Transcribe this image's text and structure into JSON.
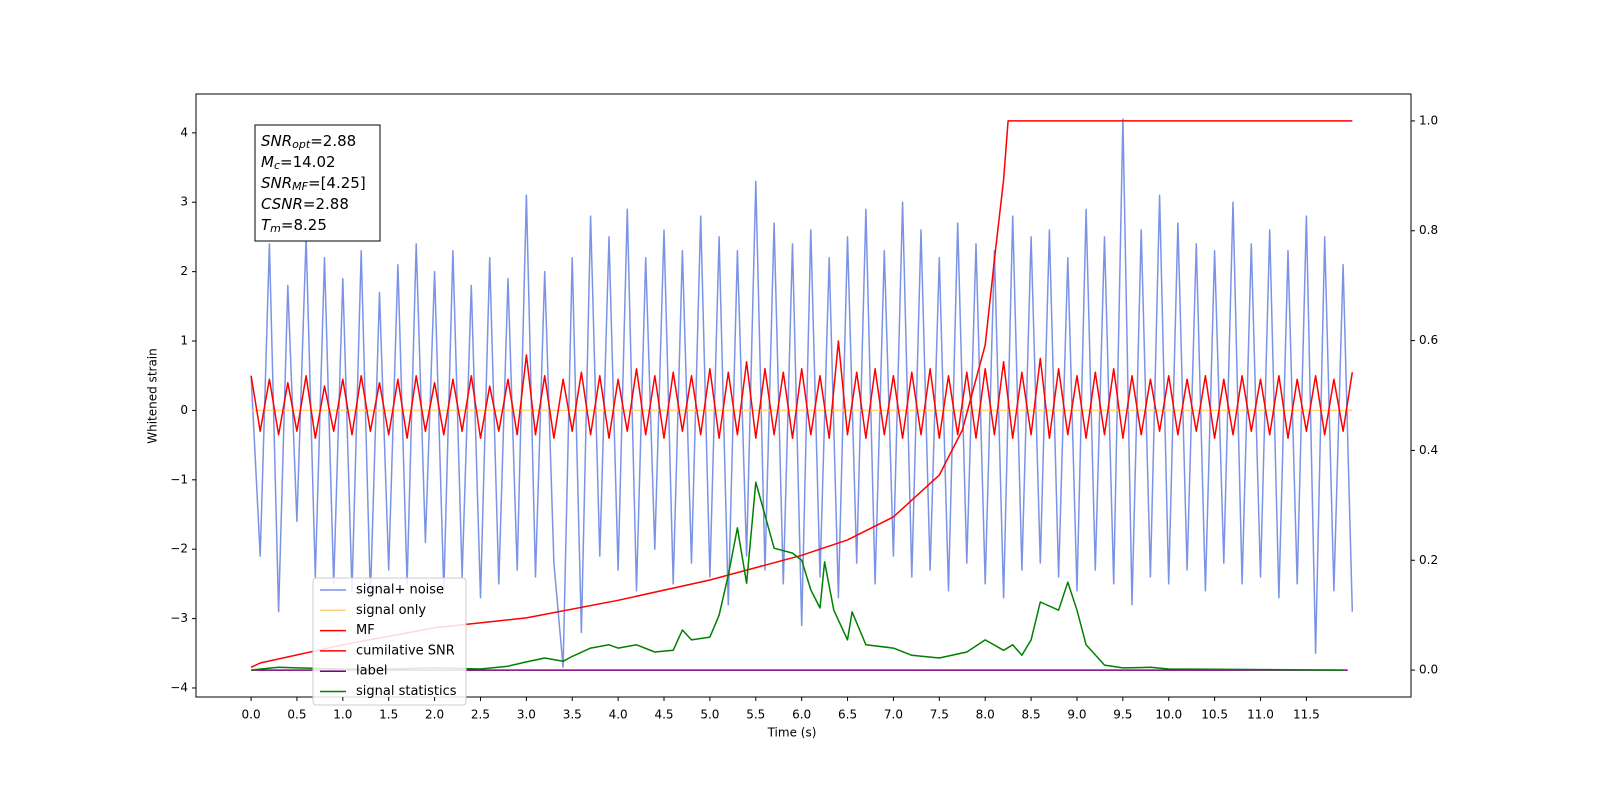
{
  "chart_data": {
    "type": "line",
    "xlabel": "Time (s)",
    "ylabel": "Whitened strain",
    "xlim": [
      -0.6,
      12.64
    ],
    "ylim": [
      -4.13,
      4.56
    ],
    "y2lim": [
      -0.049,
      1.049
    ],
    "xticks": [
      {
        "value": 0,
        "label": "0.0"
      },
      0.5,
      {
        "value": 1,
        "label": "1.0"
      },
      1.5,
      {
        "value": 2,
        "label": "2.0"
      },
      2.5,
      {
        "value": 3,
        "label": "3.0"
      },
      3.5,
      {
        "value": 4,
        "label": "4.0"
      },
      4.5,
      {
        "value": 5,
        "label": "5.0"
      },
      5.5,
      {
        "value": 6,
        "label": "6.0"
      },
      6.5,
      {
        "value": 7,
        "label": "7.0"
      },
      7.5,
      {
        "value": 8,
        "label": "8.0"
      },
      8.5,
      {
        "value": 9,
        "label": "9.0"
      },
      9.5,
      {
        "value": 10,
        "label": "10.0"
      },
      10.5,
      {
        "value": 11,
        "label": "11.0"
      },
      11.5
    ],
    "yticks": [
      {
        "value": -4,
        "label": "−4"
      },
      {
        "value": -3,
        "label": "−3"
      },
      {
        "value": -2,
        "label": "−2"
      },
      {
        "value": -1,
        "label": "−1"
      },
      0,
      1,
      2,
      3,
      4
    ],
    "y2ticks": [
      {
        "value": 0,
        "label": "0.0"
      },
      0.2,
      0.4,
      0.6,
      0.8,
      {
        "value": 1,
        "label": "1.0"
      }
    ],
    "legend": "lower left",
    "annotations": [
      {
        "base": "SNR",
        "sub": "opt",
        "text": "=2.88"
      },
      {
        "base": "M",
        "sub": "c",
        "text": "=14.02"
      },
      {
        "base": "SNR",
        "sub": "MF",
        "text": "=[4.25]"
      },
      {
        "base": "CSNR",
        "text": "=2.88"
      },
      {
        "base": "T",
        "sub": "m",
        "text": "=8.25"
      }
    ],
    "x": [
      0,
      0.1,
      0.2,
      0.3,
      0.4,
      0.5,
      0.6,
      0.7,
      0.8,
      0.9,
      1,
      1.1,
      1.2,
      1.3,
      1.4,
      1.5,
      1.6,
      1.7,
      1.8,
      1.9,
      2,
      2.1,
      2.2,
      2.3,
      2.4,
      2.5,
      2.6,
      2.7,
      2.8,
      2.9,
      3,
      3.1,
      3.2,
      3.3,
      3.4,
      3.5,
      3.6,
      3.7,
      3.8,
      3.9,
      4,
      4.1,
      4.2,
      4.3,
      4.4,
      4.5,
      4.6,
      4.7,
      4.8,
      4.9,
      5,
      5.1,
      5.2,
      5.3,
      5.4,
      5.5,
      5.6,
      5.7,
      5.8,
      5.9,
      6,
      6.1,
      6.2,
      6.3,
      6.4,
      6.5,
      6.6,
      6.7,
      6.8,
      6.9,
      7,
      7.1,
      7.2,
      7.3,
      7.4,
      7.5,
      7.6,
      7.7,
      7.8,
      7.9,
      8,
      8.1,
      8.2,
      8.3,
      8.4,
      8.5,
      8.6,
      8.7,
      8.8,
      8.9,
      9,
      9.1,
      9.2,
      9.3,
      9.4,
      9.5,
      9.6,
      9.7,
      9.8,
      9.9,
      10,
      10.1,
      10.2,
      10.3,
      10.4,
      10.5,
      10.6,
      10.7,
      10.8,
      10.9,
      11,
      11.1,
      11.2,
      11.3,
      11.4,
      11.5,
      11.6,
      11.7,
      11.8,
      11.9,
      12
    ],
    "series": [
      {
        "name": "signal+ noise",
        "color": "#7b93e6",
        "values": [
          0.5,
          -2.1,
          2.4,
          -2.9,
          1.8,
          -1.6,
          2.5,
          -2.4,
          2.2,
          -2.5,
          1.9,
          -2.6,
          2.3,
          -2.7,
          1.7,
          -2.3,
          2.1,
          -2.5,
          2.4,
          -1.9,
          2.0,
          -2.6,
          2.3,
          -2.4,
          1.8,
          -2.7,
          2.2,
          -2.5,
          1.9,
          -2.3,
          3.1,
          -2.4,
          2.0,
          -2.2,
          -3.7,
          2.2,
          -3.2,
          2.8,
          -2.1,
          2.5,
          -2.3,
          2.9,
          -2.6,
          2.2,
          -2.0,
          2.6,
          -2.5,
          2.3,
          -2.2,
          2.8,
          -2.4,
          2.5,
          -2.8,
          2.3,
          -2.1,
          3.3,
          -2.3,
          2.7,
          -2.5,
          2.4,
          -3.1,
          2.6,
          -2.4,
          2.2,
          -2.7,
          2.5,
          -2.2,
          2.9,
          -2.5,
          2.3,
          -2.1,
          3.0,
          -2.4,
          2.6,
          -2.3,
          2.2,
          -2.6,
          2.7,
          -2.2,
          2.4,
          -2.5,
          2.3,
          -2.7,
          2.8,
          -2.3,
          2.5,
          -2.2,
          2.6,
          -2.4,
          2.2,
          -2.6,
          2.9,
          -2.3,
          2.5,
          -2.5,
          4.2,
          -2.8,
          2.6,
          -2.4,
          3.1,
          -2.5,
          2.7,
          -2.3,
          2.4,
          -2.6,
          2.3,
          -2.2,
          3.0,
          -2.5,
          2.4,
          -2.4,
          2.6,
          -2.7,
          2.3,
          -2.5,
          2.8,
          -3.5,
          2.5,
          -2.6,
          2.1,
          -2.9
        ]
      },
      {
        "name": "signal only",
        "color": "#ffd27f",
        "x": [
          0,
          12
        ],
        "values": [
          0,
          0
        ]
      },
      {
        "name": "MF",
        "color": "#ff0000",
        "values": [
          0.5,
          -0.3,
          0.45,
          -0.35,
          0.4,
          -0.3,
          0.5,
          -0.4,
          0.35,
          -0.3,
          0.45,
          -0.35,
          0.5,
          -0.3,
          0.4,
          -0.35,
          0.45,
          -0.4,
          0.5,
          -0.3,
          0.4,
          -0.35,
          0.45,
          -0.3,
          0.5,
          -0.4,
          0.35,
          -0.3,
          0.45,
          -0.35,
          0.8,
          -0.35,
          0.5,
          -0.4,
          0.45,
          -0.3,
          0.55,
          -0.35,
          0.5,
          -0.4,
          0.45,
          -0.3,
          0.6,
          -0.35,
          0.5,
          -0.4,
          0.55,
          -0.3,
          0.5,
          -0.35,
          0.6,
          -0.4,
          0.55,
          -0.35,
          0.7,
          -0.4,
          0.6,
          -0.35,
          0.55,
          -0.4,
          0.6,
          -0.35,
          0.5,
          -0.4,
          1.0,
          -0.35,
          0.55,
          -0.4,
          0.6,
          -0.35,
          0.5,
          -0.4,
          0.55,
          -0.35,
          0.6,
          -0.4,
          0.5,
          -0.35,
          0.55,
          -0.4,
          0.6,
          -0.35,
          0.7,
          -0.4,
          0.55,
          -0.35,
          0.75,
          -0.4,
          0.6,
          -0.35,
          0.5,
          -0.4,
          0.55,
          -0.35,
          0.6,
          -0.4,
          0.5,
          -0.35,
          0.45,
          -0.3,
          0.5,
          -0.35,
          0.45,
          -0.3,
          0.5,
          -0.4,
          0.45,
          -0.35,
          0.5,
          -0.3,
          0.45,
          -0.35,
          0.5,
          -0.4,
          0.45,
          -0.3,
          0.5,
          -0.35,
          0.45,
          -0.3,
          0.55
        ]
      },
      {
        "name": "cumilative SNR",
        "color": "#ff0000",
        "axis": "y2",
        "x": [
          0,
          0.1,
          1,
          2,
          3,
          4,
          5,
          6,
          6.5,
          7,
          7.5,
          7.75,
          8,
          8.1,
          8.2,
          8.25,
          12
        ],
        "values": [
          0.005,
          0.013,
          0.046,
          0.077,
          0.095,
          0.127,
          0.164,
          0.209,
          0.237,
          0.279,
          0.355,
          0.437,
          0.592,
          0.747,
          0.893,
          1.0,
          1.0
        ]
      },
      {
        "name": "label",
        "color": "#800080",
        "axis": "y2",
        "x": [
          0,
          11.95
        ],
        "values": [
          0,
          0
        ]
      },
      {
        "name": "signal statistics",
        "color": "#008000",
        "axis": "y2",
        "x": [
          0,
          0.3,
          0.5,
          1,
          1.5,
          2,
          2.5,
          2.8,
          3,
          3.2,
          3.4,
          3.5,
          3.7,
          3.9,
          4,
          4.2,
          4.4,
          4.6,
          4.7,
          4.8,
          5,
          5.1,
          5.2,
          5.3,
          5.4,
          5.5,
          5.6,
          5.7,
          5.9,
          6,
          6.1,
          6.2,
          6.25,
          6.35,
          6.5,
          6.55,
          6.7,
          7,
          7.2,
          7.5,
          7.8,
          8,
          8.2,
          8.3,
          8.4,
          8.5,
          8.6,
          8.8,
          8.9,
          9,
          9.1,
          9.3,
          9.5,
          9.8,
          10,
          11.9
        ],
        "values": [
          0,
          0.005,
          0.004,
          0.002,
          0.002,
          0.004,
          0.002,
          0.007,
          0.015,
          0.022,
          0.016,
          0.025,
          0.04,
          0.046,
          0.04,
          0.046,
          0.033,
          0.036,
          0.073,
          0.055,
          0.06,
          0.1,
          0.173,
          0.259,
          0.158,
          0.342,
          0.282,
          0.222,
          0.213,
          0.2,
          0.146,
          0.113,
          0.197,
          0.109,
          0.055,
          0.106,
          0.046,
          0.04,
          0.027,
          0.022,
          0.033,
          0.055,
          0.036,
          0.046,
          0.027,
          0.055,
          0.124,
          0.109,
          0.16,
          0.109,
          0.046,
          0.009,
          0.004,
          0.005,
          0.002,
          0
        ]
      }
    ]
  }
}
